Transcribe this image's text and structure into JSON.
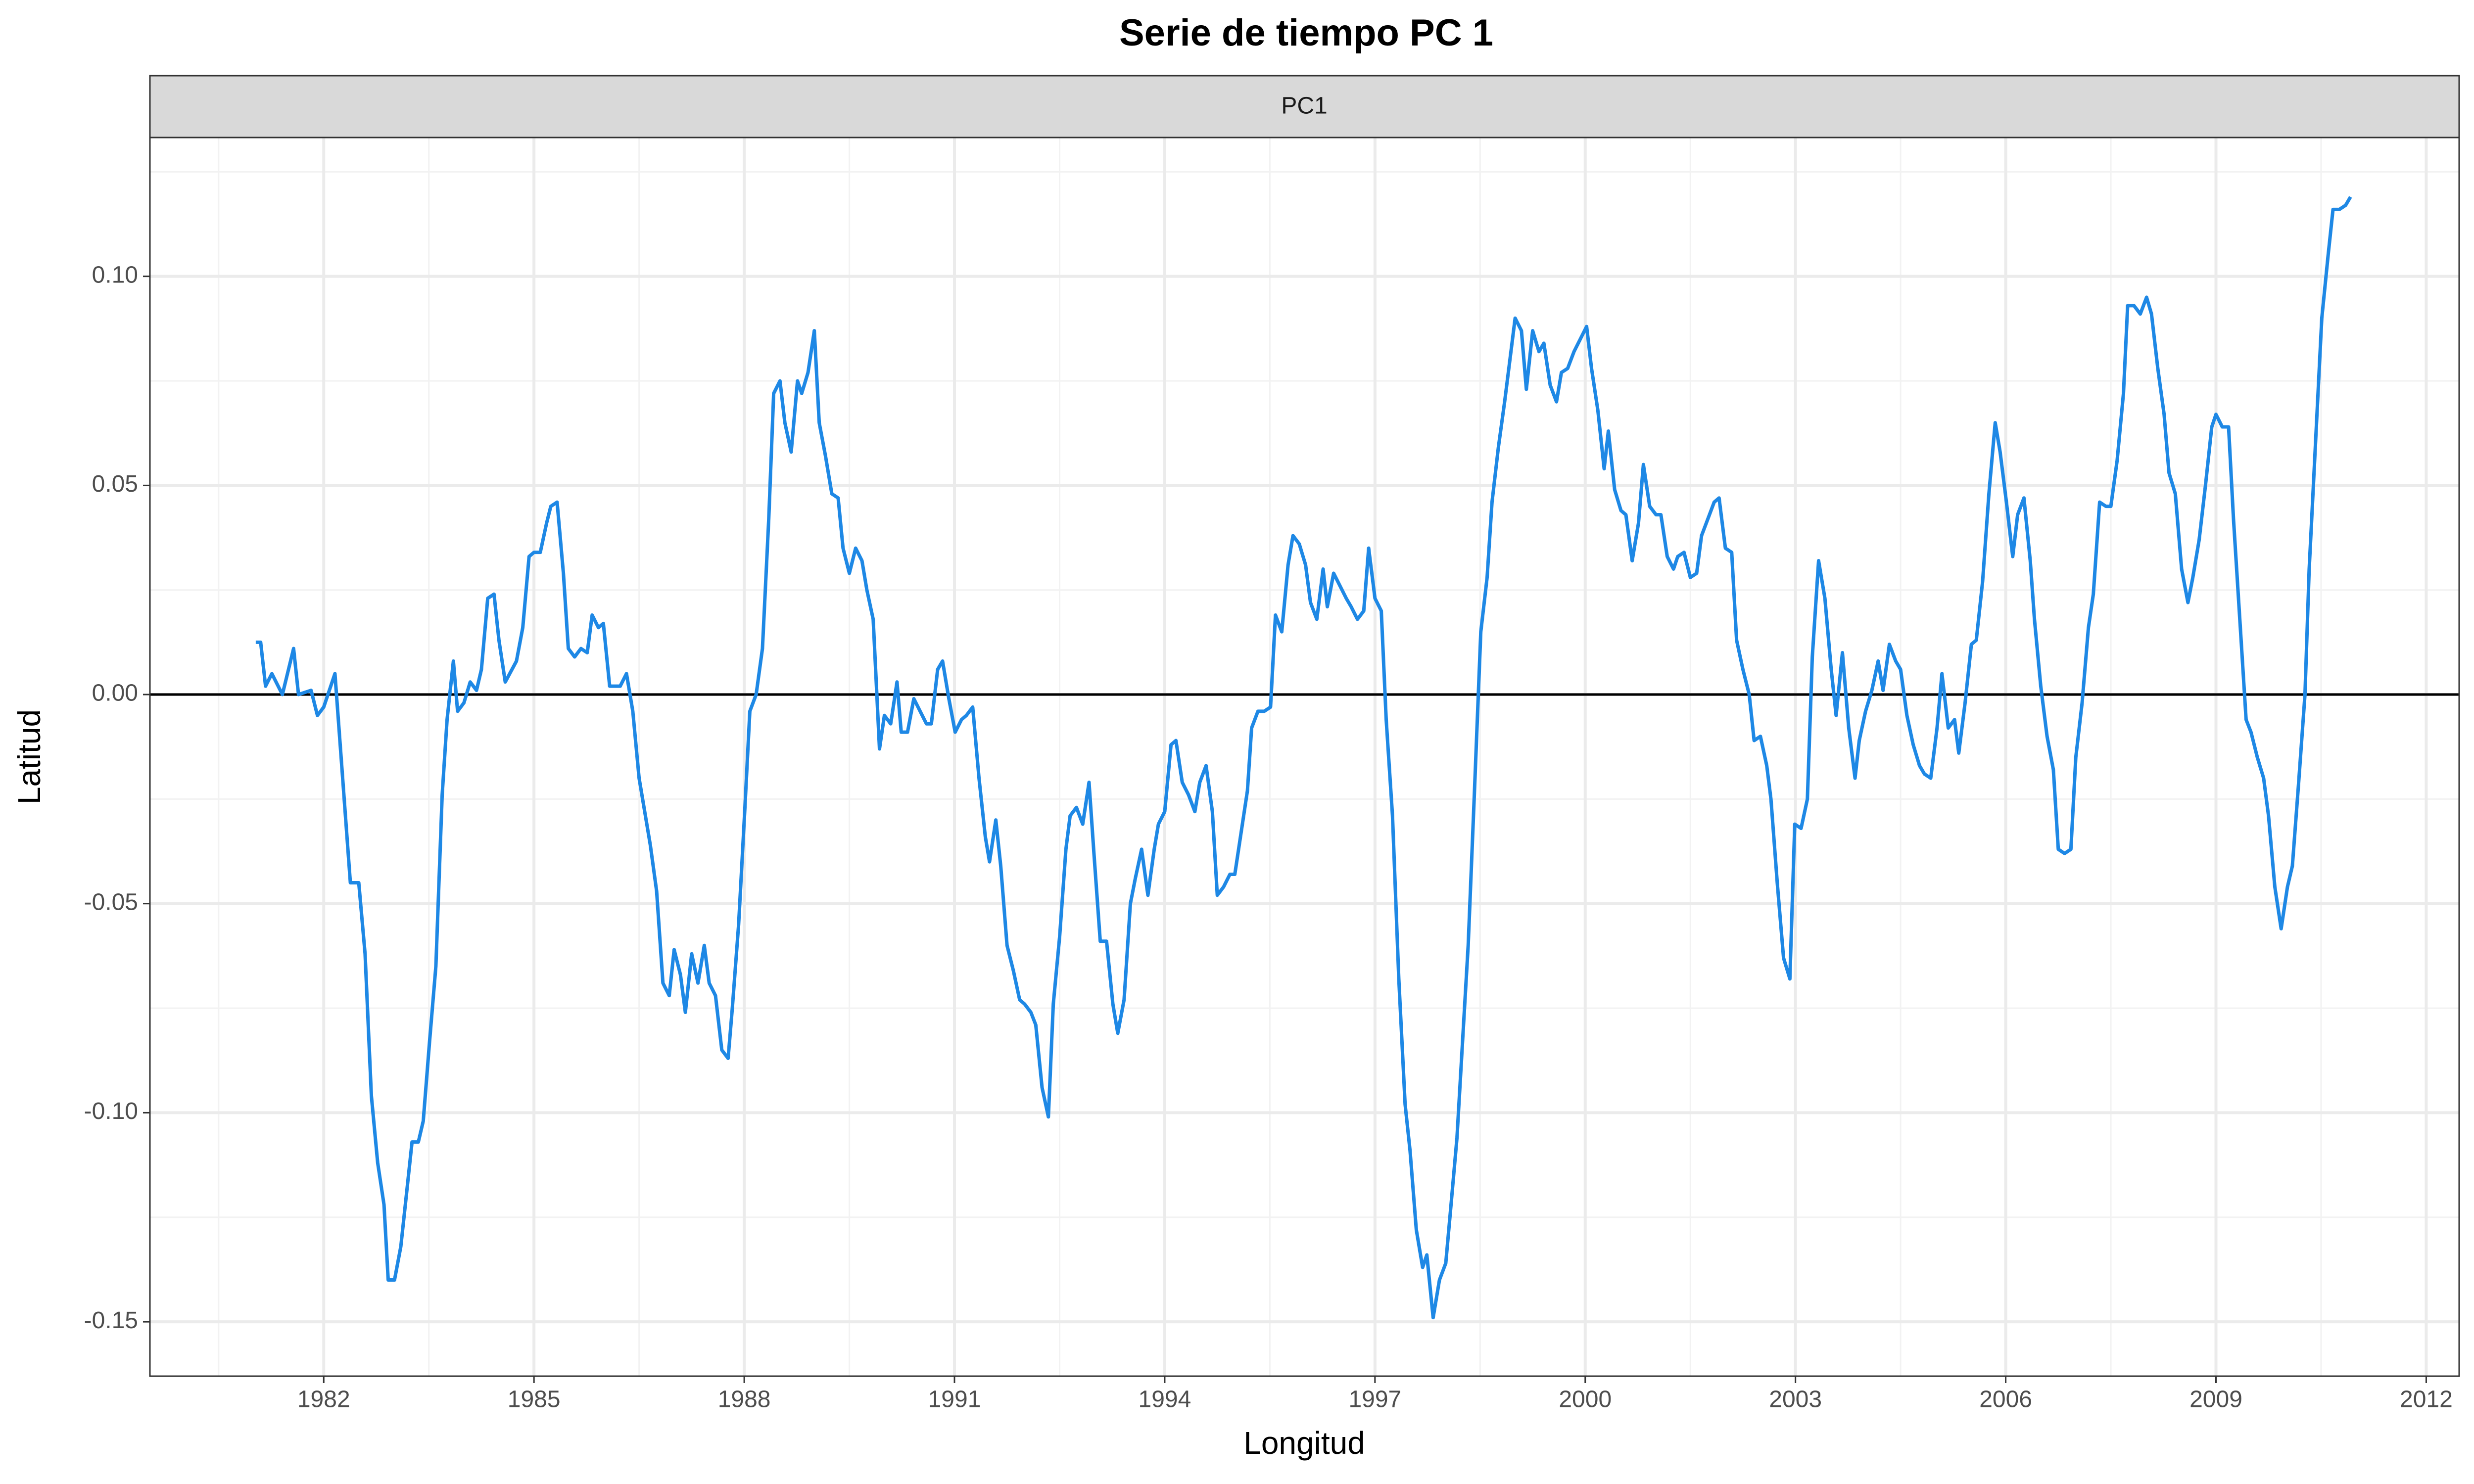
{
  "chart_data": {
    "type": "line",
    "title": "Serie de tiempo PC 1",
    "x_label": "Longitud",
    "y_label": "Latitud",
    "xlim": [
      1979.52,
      2012.47
    ],
    "ylim": [
      -0.163,
      0.1332
    ],
    "xticks": [
      1982,
      1985,
      1988,
      1991,
      1994,
      1997,
      2000,
      2003,
      2006,
      2009,
      2012
    ],
    "yticks": [
      -0.15,
      {
        "value": -0.1,
        "label": "-0.10"
      },
      -0.05,
      {
        "value": 0,
        "label": "0.00"
      },
      0.05,
      {
        "value": 0.1,
        "label": "0.10"
      }
    ],
    "grid": true,
    "hline": 0,
    "x": [
      1981.03,
      1981.1,
      1981.17,
      1981.26,
      1981.41,
      1981.57,
      1981.64,
      1981.82,
      1981.91,
      1982.0,
      1982.16,
      1982.38,
      1982.5,
      1982.59,
      1982.68,
      1982.77,
      1982.86,
      1982.92,
      1983.01,
      1983.1,
      1983.19,
      1983.26,
      1983.35,
      1983.42,
      1983.51,
      1983.6,
      1983.69,
      1983.76,
      1983.85,
      1983.91,
      1984.0,
      1984.09,
      1984.18,
      1984.25,
      1984.34,
      1984.43,
      1984.5,
      1984.59,
      1984.75,
      1984.84,
      1984.93,
      1985.0,
      1985.09,
      1985.18,
      1985.24,
      1985.33,
      1985.42,
      1985.49,
      1985.58,
      1985.67,
      1985.76,
      1985.83,
      1985.92,
      1985.99,
      1986.08,
      1986.23,
      1986.32,
      1986.41,
      1986.5,
      1986.59,
      1986.66,
      1986.75,
      1986.84,
      1986.93,
      1987.0,
      1987.09,
      1987.16,
      1987.25,
      1987.34,
      1987.43,
      1987.5,
      1987.59,
      1987.68,
      1987.77,
      1987.83,
      1987.92,
      1988.01,
      1988.08,
      1988.17,
      1988.26,
      1988.35,
      1988.42,
      1988.51,
      1988.58,
      1988.67,
      1988.76,
      1988.82,
      1988.91,
      1989.0,
      1989.07,
      1989.16,
      1989.25,
      1989.34,
      1989.41,
      1989.5,
      1989.59,
      1989.68,
      1989.75,
      1989.84,
      1989.93,
      1990.0,
      1990.09,
      1990.18,
      1990.24,
      1990.33,
      1990.42,
      1990.51,
      1990.6,
      1990.67,
      1990.76,
      1990.83,
      1990.92,
      1991.01,
      1991.1,
      1991.17,
      1991.26,
      1991.35,
      1991.44,
      1991.5,
      1991.59,
      1991.66,
      1991.75,
      1991.84,
      1991.93,
      1992.0,
      1992.09,
      1992.16,
      1992.25,
      1992.34,
      1992.41,
      1992.5,
      1992.59,
      1992.65,
      1992.74,
      1992.83,
      1992.92,
      1992.99,
      1993.08,
      1993.17,
      1993.26,
      1993.33,
      1993.42,
      1993.51,
      1993.58,
      1993.67,
      1993.76,
      1993.85,
      1993.91,
      1994.0,
      1994.09,
      1994.16,
      1994.25,
      1994.34,
      1994.43,
      1994.5,
      1994.59,
      1994.68,
      1994.75,
      1994.84,
      1994.93,
      1995.0,
      1995.09,
      1995.18,
      1995.24,
      1995.33,
      1995.42,
      1995.51,
      1995.58,
      1995.67,
      1995.76,
      1995.83,
      1995.92,
      1996.01,
      1996.08,
      1996.17,
      1996.26,
      1996.32,
      1996.41,
      1996.5,
      1996.59,
      1996.66,
      1996.75,
      1996.84,
      1996.91,
      1997.0,
      1997.09,
      1997.16,
      1997.25,
      1997.34,
      1997.43,
      1997.5,
      1997.59,
      1997.68,
      1997.74,
      1997.83,
      1997.92,
      1998.01,
      1998.08,
      1998.17,
      1998.26,
      1998.33,
      1998.42,
      1998.51,
      1998.6,
      1998.67,
      1998.76,
      1998.85,
      1998.91,
      1999.0,
      1999.09,
      1999.16,
      1999.25,
      1999.34,
      1999.41,
      1999.5,
      1999.59,
      1999.66,
      1999.75,
      1999.84,
      1999.93,
      2000.02,
      2000.09,
      2000.18,
      2000.27,
      2000.33,
      2000.42,
      2000.51,
      2000.58,
      2000.67,
      2000.76,
      2000.83,
      2000.92,
      2001.01,
      2001.08,
      2001.17,
      2001.26,
      2001.32,
      2001.41,
      2001.5,
      2001.59,
      2001.66,
      2001.75,
      2001.84,
      2001.91,
      2002.0,
      2002.09,
      2002.16,
      2002.25,
      2002.34,
      2002.41,
      2002.5,
      2002.59,
      2002.65,
      2002.74,
      2002.83,
      2002.92,
      2002.99,
      2003.08,
      2003.17,
      2003.24,
      2003.33,
      2003.42,
      2003.51,
      2003.58,
      2003.67,
      2003.76,
      2003.85,
      2003.91,
      2004.0,
      2004.09,
      2004.18,
      2004.25,
      2004.34,
      2004.43,
      2004.5,
      2004.59,
      2004.68,
      2004.77,
      2004.84,
      2004.93,
      2005.02,
      2005.09,
      2005.18,
      2005.27,
      2005.33,
      2005.42,
      2005.51,
      2005.58,
      2005.67,
      2005.76,
      2005.85,
      2005.92,
      2006.01,
      2006.1,
      2006.17,
      2006.26,
      2006.35,
      2006.41,
      2006.5,
      2006.59,
      2006.68,
      2006.75,
      2006.84,
      2006.93,
      2007.0,
      2007.09,
      2007.18,
      2007.25,
      2007.34,
      2007.43,
      2007.5,
      2007.59,
      2007.68,
      2007.74,
      2007.83,
      2007.92,
      2008.01,
      2008.08,
      2008.17,
      2008.26,
      2008.33,
      2008.42,
      2008.51,
      2008.6,
      2008.67,
      2008.76,
      2008.85,
      2008.94,
      2009.0,
      2009.09,
      2009.18,
      2009.25,
      2009.34,
      2009.43,
      2009.5,
      2009.59,
      2009.68,
      2009.75,
      2009.84,
      2009.93,
      2010.02,
      2010.09,
      2010.18,
      2010.27,
      2010.33,
      2010.42,
      2010.51,
      2010.6,
      2010.67,
      2010.76,
      2010.85,
      2010.92
    ],
    "series": [
      {
        "name": "PC1",
        "color": "#1e88e5",
        "values": [
          0.0125,
          0.0125,
          0.002,
          0.005,
          0.0,
          0.011,
          0.0,
          0.001,
          -0.005,
          -0.003,
          0.005,
          -0.045,
          -0.045,
          -0.062,
          -0.096,
          -0.112,
          -0.122,
          -0.14,
          -0.14,
          -0.132,
          -0.118,
          -0.107,
          -0.107,
          -0.102,
          -0.083,
          -0.065,
          -0.024,
          -0.006,
          0.008,
          -0.004,
          -0.002,
          0.003,
          0.001,
          0.006,
          0.023,
          0.024,
          0.013,
          0.003,
          0.008,
          0.016,
          0.033,
          0.034,
          0.034,
          0.041,
          0.045,
          0.046,
          0.029,
          0.011,
          0.009,
          0.011,
          0.01,
          0.019,
          0.016,
          0.017,
          0.002,
          0.002,
          0.005,
          -0.004,
          -0.02,
          -0.029,
          -0.036,
          -0.047,
          -0.069,
          -0.072,
          -0.061,
          -0.067,
          -0.076,
          -0.062,
          -0.069,
          -0.06,
          -0.069,
          -0.072,
          -0.085,
          -0.087,
          -0.075,
          -0.055,
          -0.027,
          -0.004,
          0.0,
          0.011,
          0.042,
          0.072,
          0.075,
          0.065,
          0.058,
          0.075,
          0.072,
          0.077,
          0.087,
          0.065,
          0.057,
          0.048,
          0.047,
          0.035,
          0.029,
          0.035,
          0.032,
          0.025,
          0.018,
          -0.013,
          -0.005,
          -0.007,
          0.003,
          -0.009,
          -0.009,
          -0.001,
          -0.004,
          -0.007,
          -0.007,
          0.006,
          0.008,
          -0.001,
          -0.009,
          -0.006,
          -0.005,
          -0.003,
          -0.02,
          -0.034,
          -0.04,
          -0.03,
          -0.041,
          -0.06,
          -0.066,
          -0.073,
          -0.074,
          -0.076,
          -0.079,
          -0.094,
          -0.101,
          -0.074,
          -0.058,
          -0.037,
          -0.029,
          -0.027,
          -0.031,
          -0.021,
          -0.038,
          -0.059,
          -0.059,
          -0.074,
          -0.081,
          -0.073,
          -0.05,
          -0.044,
          -0.037,
          -0.048,
          -0.037,
          -0.031,
          -0.028,
          -0.012,
          -0.011,
          -0.021,
          -0.024,
          -0.028,
          -0.021,
          -0.017,
          -0.028,
          -0.048,
          -0.046,
          -0.043,
          -0.043,
          -0.033,
          -0.023,
          -0.008,
          -0.004,
          -0.004,
          -0.003,
          0.019,
          0.015,
          0.031,
          0.038,
          0.036,
          0.031,
          0.022,
          0.018,
          0.03,
          0.021,
          0.029,
          0.026,
          0.023,
          0.021,
          0.018,
          0.02,
          0.035,
          0.023,
          0.02,
          -0.006,
          -0.029,
          -0.068,
          -0.098,
          -0.109,
          -0.128,
          -0.137,
          -0.134,
          -0.149,
          -0.14,
          -0.136,
          -0.123,
          -0.106,
          -0.08,
          -0.06,
          -0.023,
          0.015,
          0.028,
          0.046,
          0.059,
          0.07,
          0.078,
          0.09,
          0.087,
          0.073,
          0.087,
          0.082,
          0.084,
          0.074,
          0.07,
          0.077,
          0.078,
          0.082,
          0.085,
          0.088,
          0.078,
          0.068,
          0.054,
          0.063,
          0.049,
          0.044,
          0.043,
          0.032,
          0.041,
          0.055,
          0.045,
          0.043,
          0.043,
          0.033,
          0.03,
          0.033,
          0.034,
          0.028,
          0.029,
          0.038,
          0.042,
          0.046,
          0.047,
          0.035,
          0.034,
          0.013,
          0.006,
          0.0,
          -0.011,
          -0.01,
          -0.017,
          -0.025,
          -0.045,
          -0.063,
          -0.068,
          -0.031,
          -0.032,
          -0.025,
          0.009,
          0.032,
          0.023,
          0.006,
          -0.005,
          0.01,
          -0.008,
          -0.02,
          -0.011,
          -0.004,
          0.001,
          0.008,
          0.001,
          0.012,
          0.008,
          0.006,
          -0.005,
          -0.012,
          -0.017,
          -0.019,
          -0.02,
          -0.008,
          0.005,
          -0.008,
          -0.006,
          -0.014,
          -0.002,
          0.012,
          0.013,
          0.027,
          0.048,
          0.065,
          0.058,
          0.046,
          0.033,
          0.043,
          0.047,
          0.032,
          0.018,
          0.002,
          -0.01,
          -0.018,
          -0.037,
          -0.038,
          -0.037,
          -0.015,
          -0.002,
          0.016,
          0.024,
          0.046,
          0.045,
          0.045,
          0.056,
          0.072,
          0.093,
          0.093,
          0.091,
          0.095,
          0.091,
          0.078,
          0.067,
          0.053,
          0.048,
          0.03,
          0.022,
          0.028,
          0.037,
          0.05,
          0.064,
          0.067,
          0.064,
          0.064,
          0.042,
          0.018,
          -0.006,
          -0.009,
          -0.015,
          -0.02,
          -0.029,
          -0.046,
          -0.056,
          -0.046,
          -0.041,
          -0.021,
          0.0,
          0.03,
          0.06,
          0.09,
          0.105,
          0.116,
          0.116,
          0.117,
          0.119
        ]
      }
    ]
  }
}
